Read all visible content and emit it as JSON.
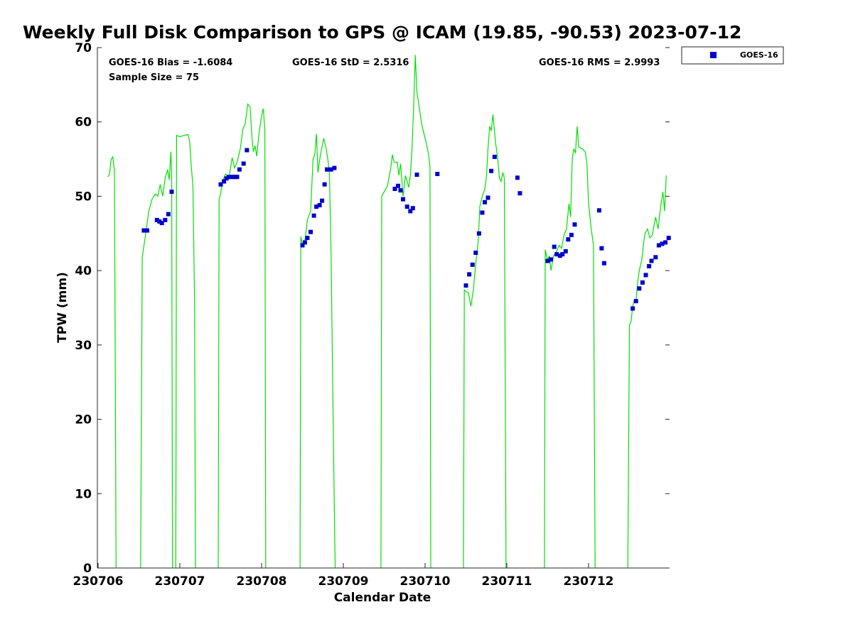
{
  "chart_data": {
    "type": "scatter",
    "title": "Weekly Full Disk Comparison to GPS @ ICAM (19.85, -90.53) 2023-07-12",
    "xlabel": "Calendar Date",
    "ylabel": "TPW (mm)",
    "xlim": [
      0,
      7.05
    ],
    "ylim": [
      0,
      70
    ],
    "x_unit": "days from 230706",
    "x_ticks": [
      {
        "value": 0,
        "label": "230706"
      },
      {
        "value": 1,
        "label": "230707"
      },
      {
        "value": 2,
        "label": "230708"
      },
      {
        "value": 3,
        "label": "230709"
      },
      {
        "value": 4,
        "label": "230710"
      },
      {
        "value": 5,
        "label": "230711"
      },
      {
        "value": 6,
        "label": "230712"
      }
    ],
    "y_ticks": [
      0,
      10,
      20,
      30,
      40,
      50,
      60,
      70
    ],
    "grid": false,
    "stats": {
      "bias": "GOES-16 Bias = -1.6084",
      "std": "GOES-16 StD = 2.5316",
      "rms": "GOES-16 RMS = 2.9993",
      "sample_size": "Sample Size = 75"
    },
    "legend": {
      "position": "outside-top-right",
      "entries": [
        "GOES-16"
      ]
    },
    "colors": {
      "gps_line": "#00e000",
      "goes_markers": "#0000cc"
    },
    "series": [
      {
        "kind": "line",
        "segments": [
          [
            [
              0.12,
              52.6
            ],
            [
              0.14,
              53.0
            ],
            [
              0.16,
              55.0
            ],
            [
              0.18,
              55.3
            ],
            [
              0.2,
              53.4
            ],
            [
              0.22,
              0
            ]
          ],
          [
            [
              0.52,
              0
            ],
            [
              0.54,
              41.8
            ],
            [
              0.58,
              44.8
            ],
            [
              0.62,
              48.0
            ],
            [
              0.66,
              49.6
            ],
            [
              0.7,
              50.3
            ],
            [
              0.73,
              50.0
            ],
            [
              0.76,
              51.6
            ],
            [
              0.79,
              50.0
            ],
            [
              0.82,
              52.4
            ],
            [
              0.85,
              53.6
            ],
            [
              0.87,
              52.2
            ],
            [
              0.89,
              56.0
            ],
            [
              0.9,
              52.5
            ],
            [
              0.91,
              0
            ]
          ],
          [
            [
              0.95,
              0
            ],
            [
              0.96,
              58.2
            ],
            [
              1.0,
              58.0
            ],
            [
              1.05,
              58.2
            ],
            [
              1.1,
              58.3
            ],
            [
              1.12,
              57.4
            ],
            [
              1.14,
              54.0
            ],
            [
              1.16,
              51.4
            ],
            [
              1.18,
              36.0
            ],
            [
              1.19,
              0
            ]
          ],
          [
            [
              1.47,
              0
            ],
            [
              1.48,
              49.6
            ],
            [
              1.5,
              50.4
            ],
            [
              1.52,
              52.0
            ],
            [
              1.56,
              53.0
            ],
            [
              1.6,
              52.4
            ],
            [
              1.64,
              55.2
            ],
            [
              1.67,
              53.8
            ],
            [
              1.7,
              54.6
            ],
            [
              1.74,
              56.4
            ],
            [
              1.77,
              59.0
            ],
            [
              1.8,
              59.8
            ],
            [
              1.83,
              62.4
            ],
            [
              1.86,
              62.0
            ],
            [
              1.88,
              58.2
            ],
            [
              1.9,
              56.0
            ],
            [
              1.92,
              56.8
            ],
            [
              1.94,
              55.4
            ],
            [
              1.97,
              58.6
            ],
            [
              2.0,
              60.8
            ],
            [
              2.02,
              61.8
            ],
            [
              2.04,
              59.0
            ],
            [
              2.05,
              0
            ]
          ],
          [
            [
              2.47,
              0
            ],
            [
              2.48,
              44.6
            ],
            [
              2.5,
              43.4
            ],
            [
              2.53,
              44.0
            ],
            [
              2.56,
              46.8
            ],
            [
              2.6,
              48.0
            ],
            [
              2.63,
              55.0
            ],
            [
              2.65,
              55.6
            ],
            [
              2.67,
              58.4
            ],
            [
              2.69,
              53.2
            ],
            [
              2.72,
              55.6
            ],
            [
              2.76,
              57.8
            ],
            [
              2.79,
              56.4
            ],
            [
              2.81,
              55.0
            ],
            [
              2.83,
              53.2
            ],
            [
              2.85,
              42.0
            ],
            [
              2.88,
              16.0
            ],
            [
              2.9,
              0
            ]
          ],
          [
            [
              3.46,
              0
            ],
            [
              3.47,
              50.0
            ],
            [
              3.5,
              50.6
            ],
            [
              3.54,
              51.4
            ],
            [
              3.58,
              53.8
            ],
            [
              3.6,
              55.6
            ],
            [
              3.62,
              54.6
            ],
            [
              3.66,
              54.6
            ],
            [
              3.68,
              52.8
            ],
            [
              3.7,
              54.4
            ],
            [
              3.73,
              50.0
            ],
            [
              3.76,
              52.8
            ],
            [
              3.78,
              52.0
            ],
            [
              3.8,
              51.2
            ],
            [
              3.82,
              52.8
            ],
            [
              3.84,
              56.4
            ],
            [
              3.86,
              62.0
            ],
            [
              3.88,
              69.0
            ],
            [
              3.9,
              64.0
            ],
            [
              3.93,
              61.8
            ],
            [
              3.96,
              59.6
            ],
            [
              4.0,
              57.8
            ],
            [
              4.04,
              55.8
            ],
            [
              4.06,
              54.0
            ],
            [
              4.07,
              0
            ]
          ],
          [
            [
              4.47,
              0
            ],
            [
              4.48,
              37.4
            ],
            [
              4.5,
              37.2
            ],
            [
              4.53,
              37.0
            ],
            [
              4.56,
              35.2
            ],
            [
              4.59,
              37.4
            ],
            [
              4.62,
              41.0
            ],
            [
              4.65,
              44.0
            ],
            [
              4.67,
              48.6
            ],
            [
              4.7,
              50.0
            ],
            [
              4.73,
              51.0
            ],
            [
              4.75,
              52.6
            ],
            [
              4.77,
              56.4
            ],
            [
              4.79,
              59.4
            ],
            [
              4.81,
              58.8
            ],
            [
              4.83,
              61.0
            ],
            [
              4.86,
              57.4
            ],
            [
              4.89,
              55.0
            ],
            [
              4.91,
              52.4
            ],
            [
              4.93,
              52.0
            ],
            [
              4.95,
              53.2
            ],
            [
              4.97,
              52.4
            ],
            [
              4.99,
              0
            ]
          ],
          [
            [
              5.46,
              0
            ],
            [
              5.47,
              42.8
            ],
            [
              5.5,
              41.4
            ],
            [
              5.52,
              42.0
            ],
            [
              5.54,
              40.0
            ],
            [
              5.57,
              42.0
            ],
            [
              5.6,
              42.4
            ],
            [
              5.64,
              43.4
            ],
            [
              5.67,
              43.0
            ],
            [
              5.7,
              44.8
            ],
            [
              5.73,
              45.6
            ],
            [
              5.76,
              49.0
            ],
            [
              5.78,
              47.2
            ],
            [
              5.8,
              55.0
            ],
            [
              5.82,
              56.4
            ],
            [
              5.84,
              55.8
            ],
            [
              5.86,
              59.4
            ],
            [
              5.88,
              56.6
            ],
            [
              5.92,
              56.4
            ],
            [
              5.96,
              56.0
            ],
            [
              5.98,
              54.4
            ],
            [
              6.0,
              49.0
            ],
            [
              6.03,
              45.8
            ],
            [
              6.06,
              43.4
            ],
            [
              6.08,
              0
            ]
          ],
          [
            [
              6.48,
              0
            ],
            [
              6.5,
              32.6
            ],
            [
              6.52,
              33.2
            ],
            [
              6.54,
              35.2
            ],
            [
              6.56,
              36.0
            ],
            [
              6.58,
              35.8
            ],
            [
              6.6,
              38.4
            ],
            [
              6.62,
              40.0
            ],
            [
              6.65,
              41.4
            ],
            [
              6.67,
              43.4
            ],
            [
              6.69,
              45.0
            ],
            [
              6.72,
              45.6
            ],
            [
              6.75,
              44.4
            ],
            [
              6.78,
              44.8
            ],
            [
              6.82,
              47.2
            ],
            [
              6.85,
              45.6
            ],
            [
              6.88,
              48.4
            ],
            [
              6.91,
              50.6
            ],
            [
              6.93,
              48.0
            ],
            [
              6.95,
              52.8
            ]
          ]
        ]
      },
      {
        "name": "GOES-16",
        "kind": "markers",
        "points": [
          [
            0.56,
            45.4
          ],
          [
            0.6,
            45.4
          ],
          [
            0.72,
            46.8
          ],
          [
            0.75,
            46.6
          ],
          [
            0.78,
            46.4
          ],
          [
            0.82,
            46.8
          ],
          [
            0.86,
            47.6
          ],
          [
            0.9,
            50.6
          ],
          [
            1.5,
            51.6
          ],
          [
            1.54,
            52.0
          ],
          [
            1.57,
            52.4
          ],
          [
            1.6,
            52.6
          ],
          [
            1.64,
            52.6
          ],
          [
            1.67,
            52.6
          ],
          [
            1.7,
            52.6
          ],
          [
            1.73,
            53.6
          ],
          [
            1.78,
            54.4
          ],
          [
            1.82,
            56.2
          ],
          [
            2.5,
            43.4
          ],
          [
            2.53,
            43.8
          ],
          [
            2.56,
            44.4
          ],
          [
            2.6,
            45.2
          ],
          [
            2.64,
            47.4
          ],
          [
            2.67,
            48.6
          ],
          [
            2.71,
            48.8
          ],
          [
            2.74,
            49.4
          ],
          [
            2.77,
            51.6
          ],
          [
            2.8,
            53.6
          ],
          [
            2.85,
            53.6
          ],
          [
            2.89,
            53.8
          ],
          [
            3.63,
            51.0
          ],
          [
            3.67,
            51.4
          ],
          [
            3.7,
            50.8
          ],
          [
            3.73,
            49.6
          ],
          [
            3.78,
            48.6
          ],
          [
            3.82,
            48.0
          ],
          [
            3.85,
            48.4
          ],
          [
            3.9,
            52.9
          ],
          [
            4.15,
            53.0
          ],
          [
            4.5,
            38.0
          ],
          [
            4.54,
            39.5
          ],
          [
            4.58,
            40.8
          ],
          [
            4.62,
            42.4
          ],
          [
            4.66,
            45.0
          ],
          [
            4.7,
            47.8
          ],
          [
            4.73,
            49.2
          ],
          [
            4.77,
            49.8
          ],
          [
            4.81,
            53.4
          ],
          [
            4.85,
            55.3
          ],
          [
            5.13,
            52.5
          ],
          [
            5.16,
            50.4
          ],
          [
            5.5,
            41.3
          ],
          [
            5.54,
            41.5
          ],
          [
            5.58,
            43.2
          ],
          [
            5.61,
            42.2
          ],
          [
            5.65,
            42.0
          ],
          [
            5.68,
            42.2
          ],
          [
            5.72,
            42.6
          ],
          [
            5.75,
            44.2
          ],
          [
            5.79,
            44.8
          ],
          [
            5.83,
            46.2
          ],
          [
            6.13,
            48.1
          ],
          [
            6.16,
            43.0
          ],
          [
            6.19,
            41.0
          ],
          [
            6.54,
            34.9
          ],
          [
            6.58,
            35.9
          ],
          [
            6.62,
            37.6
          ],
          [
            6.66,
            38.4
          ],
          [
            6.7,
            39.4
          ],
          [
            6.74,
            40.6
          ],
          [
            6.77,
            41.3
          ],
          [
            6.82,
            41.8
          ],
          [
            6.86,
            43.4
          ],
          [
            6.9,
            43.6
          ],
          [
            6.94,
            43.8
          ],
          [
            6.98,
            44.4
          ]
        ]
      }
    ]
  }
}
